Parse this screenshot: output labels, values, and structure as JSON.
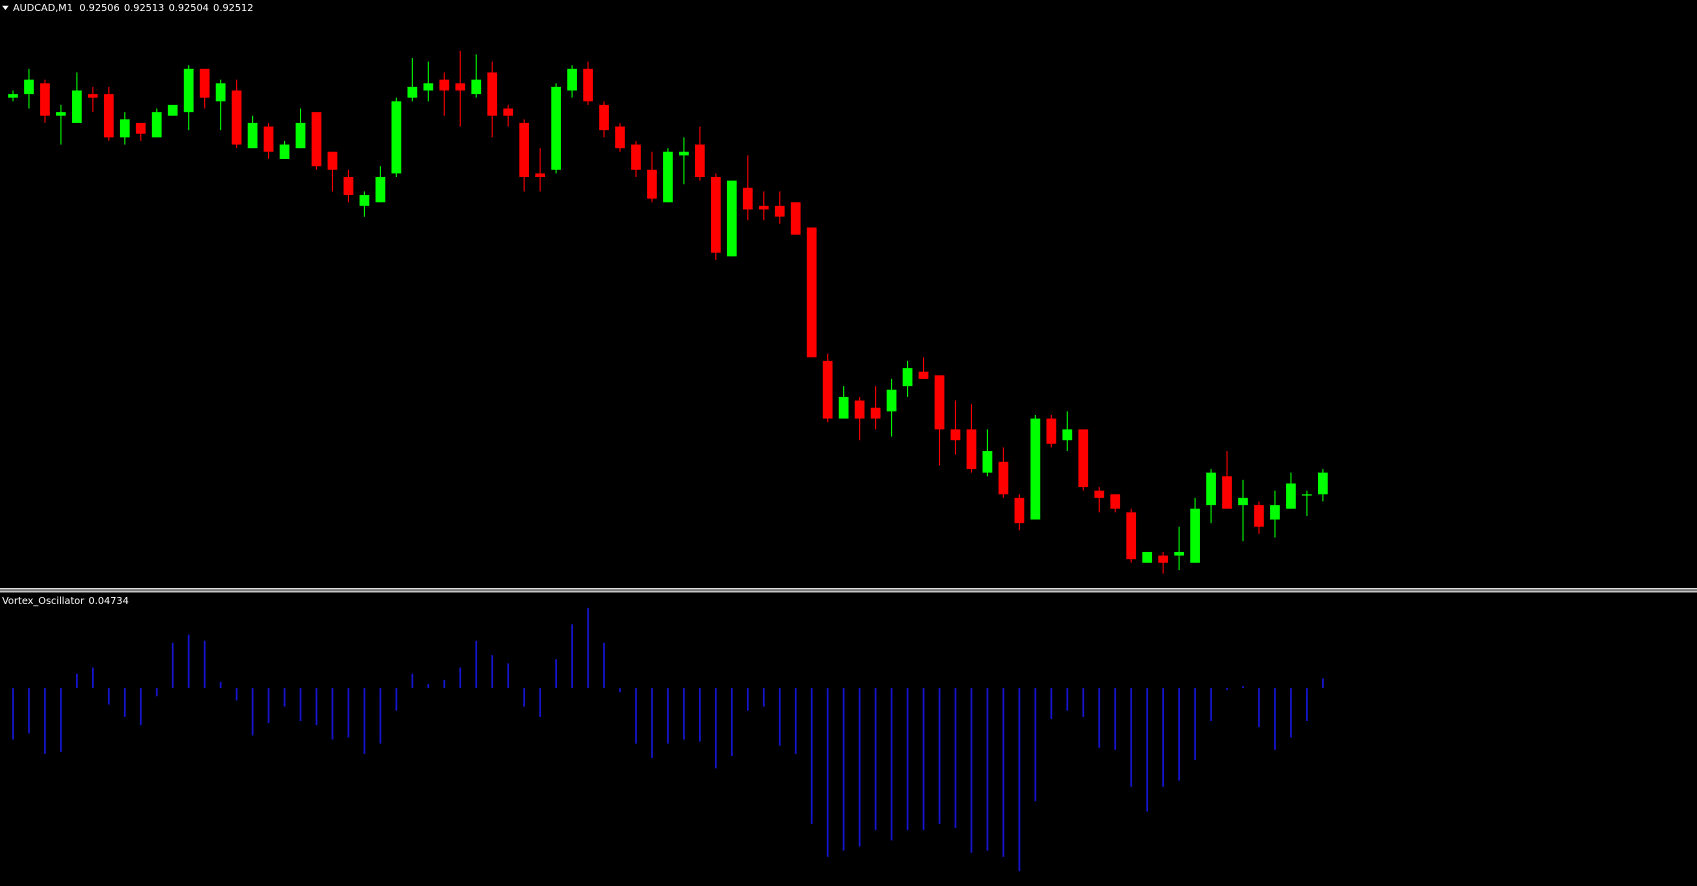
{
  "chart_data": [
    {
      "type": "candlestick",
      "title": "AUDCAD,M1",
      "up_color": "#00ff00",
      "down_color": "#ff0000",
      "ylim": [
        0.9248,
        0.92643
      ],
      "open": [
        0.92616,
        0.92617,
        0.9262,
        0.92611,
        0.92609,
        0.92617,
        0.92617,
        0.92605,
        0.92609,
        0.92605,
        0.92611,
        0.92612,
        0.92624,
        0.92615,
        0.92618,
        0.92602,
        0.92608,
        0.92599,
        0.92602,
        0.92612,
        0.92601,
        0.92594,
        0.92586,
        0.92587,
        0.92595,
        0.92616,
        0.92618,
        0.92621,
        0.9262,
        0.92617,
        0.92623,
        0.92613,
        0.92609,
        0.92595,
        0.92596,
        0.92618,
        0.92624,
        0.92614,
        0.92608,
        0.92603,
        0.92596,
        0.92587,
        0.926,
        0.92603,
        0.92594,
        0.92572,
        0.92591,
        0.92586,
        0.92586,
        0.92587,
        0.9258,
        0.92543,
        0.92527,
        0.92532,
        0.9253,
        0.92529,
        0.92536,
        0.9254,
        0.92539,
        0.92524,
        0.92524,
        0.92512,
        0.92515,
        0.92505,
        0.92499,
        0.92527,
        0.92521,
        0.92524,
        0.92507,
        0.92506,
        0.92501,
        0.92487,
        0.92489,
        0.92489,
        0.92487,
        0.92503,
        0.92511,
        0.92503,
        0.92503,
        0.92499,
        0.92502,
        0.92506,
        0.92506
      ],
      "high": [
        0.92618,
        0.92624,
        0.92621,
        0.92614,
        0.92623,
        0.92619,
        0.92619,
        0.92612,
        0.92609,
        0.92613,
        0.92614,
        0.92625,
        0.92624,
        0.92621,
        0.92621,
        0.92611,
        0.92609,
        0.92604,
        0.92613,
        0.92612,
        0.92601,
        0.92596,
        0.9259,
        0.92597,
        0.92616,
        0.92627,
        0.92626,
        0.92623,
        0.92629,
        0.92628,
        0.92626,
        0.92614,
        0.9261,
        0.92602,
        0.9262,
        0.92625,
        0.92626,
        0.92615,
        0.92609,
        0.92604,
        0.92601,
        0.92602,
        0.92605,
        0.92608,
        0.92595,
        0.92593,
        0.926,
        0.9259,
        0.9259,
        0.92587,
        0.9258,
        0.92545,
        0.92536,
        0.92533,
        0.92536,
        0.92538,
        0.92543,
        0.92544,
        0.92539,
        0.92532,
        0.92531,
        0.92524,
        0.92519,
        0.92506,
        0.92528,
        0.92528,
        0.92529,
        0.92524,
        0.92508,
        0.92506,
        0.92502,
        0.9249,
        0.9249,
        0.92497,
        0.92505,
        0.92513,
        0.92518,
        0.9251,
        0.92504,
        0.92507,
        0.92512,
        0.92507,
        0.92513
      ],
      "low": [
        0.92615,
        0.92613,
        0.92609,
        0.92603,
        0.92609,
        0.92612,
        0.92604,
        0.92603,
        0.92604,
        0.92605,
        0.92611,
        0.92607,
        0.92613,
        0.92607,
        0.92602,
        0.92602,
        0.92599,
        0.92599,
        0.92602,
        0.92596,
        0.9259,
        0.92587,
        0.92583,
        0.92587,
        0.92594,
        0.92615,
        0.92615,
        0.92611,
        0.92608,
        0.92616,
        0.92605,
        0.92608,
        0.9259,
        0.9259,
        0.92595,
        0.92616,
        0.92614,
        0.92605,
        0.92601,
        0.92594,
        0.92587,
        0.92587,
        0.92592,
        0.92593,
        0.92571,
        0.92572,
        0.92582,
        0.92582,
        0.92581,
        0.92578,
        0.92544,
        0.92526,
        0.92527,
        0.92521,
        0.92524,
        0.92522,
        0.92533,
        0.92538,
        0.92514,
        0.92517,
        0.92512,
        0.92511,
        0.92505,
        0.92496,
        0.92499,
        0.92519,
        0.92518,
        0.92507,
        0.92501,
        0.92501,
        0.92487,
        0.92487,
        0.92484,
        0.92485,
        0.92487,
        0.92498,
        0.92502,
        0.92493,
        0.92495,
        0.92494,
        0.92502,
        0.925,
        0.92504
      ],
      "close": [
        0.92617,
        0.92621,
        0.92611,
        0.92612,
        0.92618,
        0.92616,
        0.92605,
        0.9261,
        0.92606,
        0.92612,
        0.92614,
        0.92624,
        0.92616,
        0.9262,
        0.92603,
        0.92609,
        0.92601,
        0.92603,
        0.92609,
        0.92597,
        0.92596,
        0.92589,
        0.92589,
        0.92594,
        0.92615,
        0.92619,
        0.9262,
        0.92618,
        0.92618,
        0.92621,
        0.92611,
        0.92611,
        0.92594,
        0.92594,
        0.92619,
        0.92624,
        0.92615,
        0.92607,
        0.92602,
        0.92596,
        0.92588,
        0.92601,
        0.92601,
        0.92594,
        0.92573,
        0.92593,
        0.92585,
        0.92585,
        0.92583,
        0.92578,
        0.92544,
        0.92527,
        0.92533,
        0.92527,
        0.92527,
        0.92535,
        0.92541,
        0.92538,
        0.92524,
        0.92521,
        0.92513,
        0.92518,
        0.92506,
        0.92498,
        0.92527,
        0.9252,
        0.92524,
        0.92508,
        0.92505,
        0.92502,
        0.92488,
        0.9249,
        0.92487,
        0.9249,
        0.92502,
        0.92512,
        0.92502,
        0.92505,
        0.92497,
        0.92503,
        0.92509,
        0.92506,
        0.92512
      ]
    },
    {
      "type": "bar",
      "title": "Vortex_Oscillator",
      "color": "#1515d0",
      "ylim": [
        -0.96,
        0.46
      ],
      "values": [
        -0.25,
        -0.22,
        -0.32,
        -0.31,
        0.07,
        0.1,
        -0.08,
        -0.14,
        -0.18,
        -0.04,
        0.22,
        0.26,
        0.23,
        0.03,
        -0.06,
        -0.23,
        -0.17,
        -0.09,
        -0.16,
        -0.18,
        -0.25,
        -0.24,
        -0.32,
        -0.27,
        -0.11,
        0.07,
        0.02,
        0.04,
        0.1,
        0.23,
        0.16,
        0.12,
        -0.09,
        -0.14,
        0.14,
        0.31,
        0.39,
        0.22,
        -0.02,
        -0.27,
        -0.34,
        -0.27,
        -0.25,
        -0.26,
        -0.39,
        -0.33,
        -0.11,
        -0.09,
        -0.28,
        -0.32,
        -0.66,
        -0.82,
        -0.79,
        -0.77,
        -0.69,
        -0.74,
        -0.69,
        -0.69,
        -0.66,
        -0.68,
        -0.8,
        -0.79,
        -0.82,
        -0.89,
        -0.55,
        -0.15,
        -0.11,
        -0.14,
        -0.29,
        -0.3,
        -0.48,
        -0.6,
        -0.48,
        -0.45,
        -0.35,
        -0.16,
        -0.01,
        0.01,
        -0.19,
        -0.3,
        -0.24,
        -0.16,
        0.04734
      ]
    }
  ]
}
